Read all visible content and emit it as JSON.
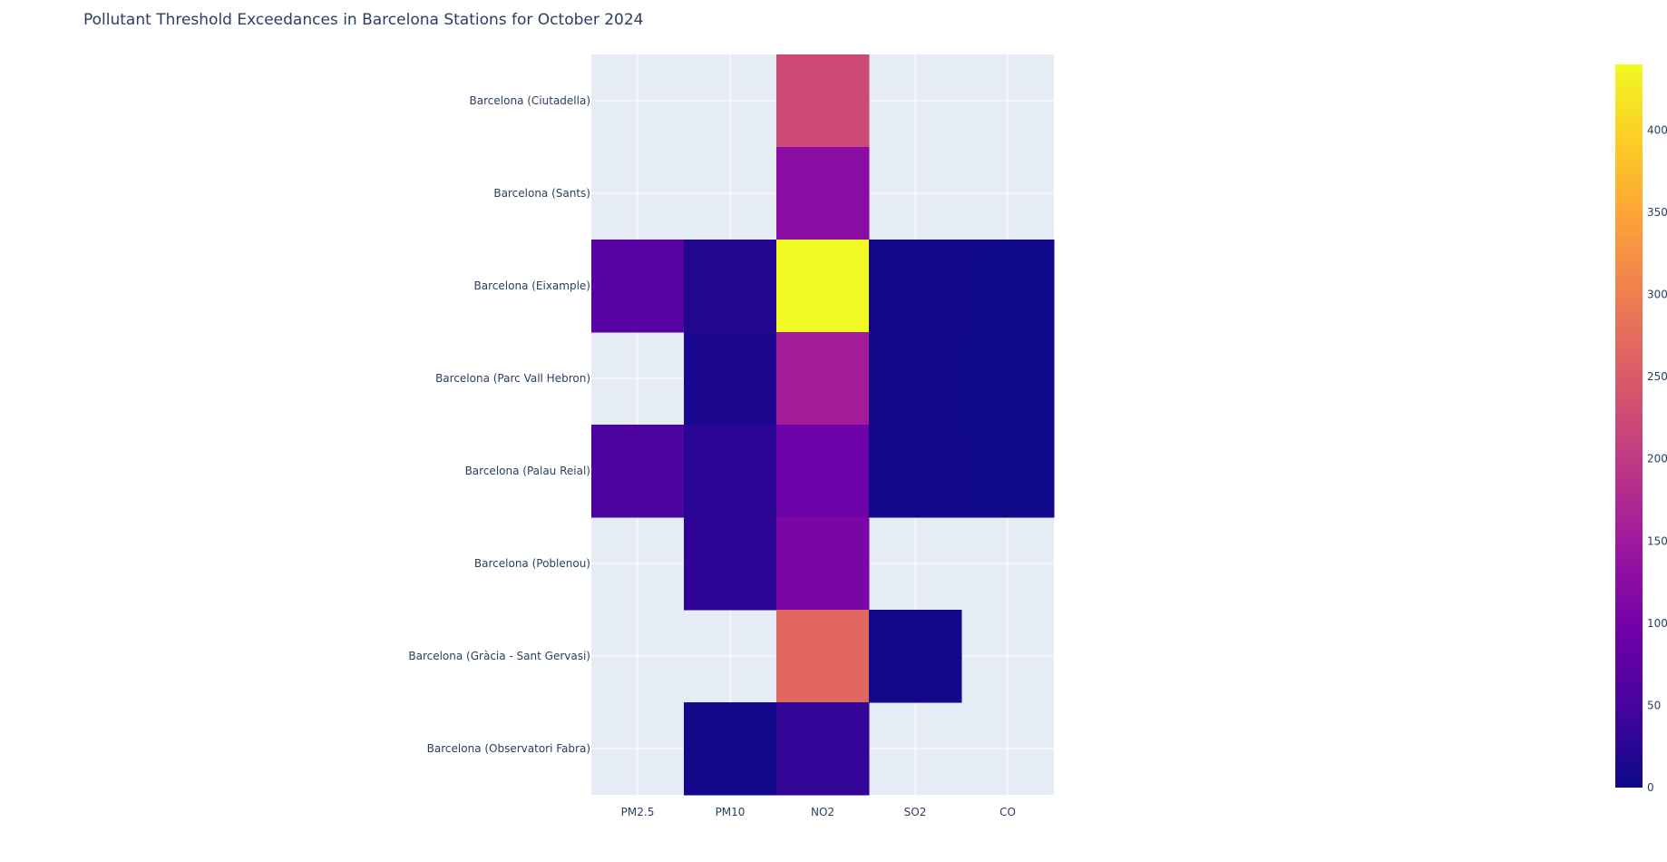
{
  "chart_data": {
    "type": "heatmap",
    "title": "Pollutant Threshold Exceedances in Barcelona Stations for October 2024",
    "xlabel": "",
    "ylabel": "",
    "x_categories": [
      "PM2.5",
      "PM10",
      "NO2",
      "SO2",
      "CO"
    ],
    "y_categories": [
      "Barcelona (Ciutadella)",
      "Barcelona (Sants)",
      "Barcelona (Eixample)",
      "Barcelona (Parc Vall Hebron)",
      "Barcelona (Palau Reial)",
      "Barcelona (Poblenou)",
      "Barcelona (Gràcia - Sant Gervasi)",
      "Barcelona (Observatori Fabra)"
    ],
    "z": [
      [
        null,
        null,
        225,
        null,
        null
      ],
      [
        null,
        null,
        124,
        null,
        null
      ],
      [
        70,
        18,
        440,
        4,
        2
      ],
      [
        null,
        12,
        155,
        3,
        2
      ],
      [
        55,
        25,
        90,
        4,
        2
      ],
      [
        null,
        28,
        108,
        null,
        null
      ],
      [
        null,
        null,
        265,
        6,
        null
      ],
      [
        null,
        4,
        32,
        null,
        null
      ]
    ],
    "colorscale": "Plasma",
    "zlim": [
      0,
      440
    ],
    "colorbar_ticks": [
      0,
      50,
      100,
      150,
      200,
      250,
      300,
      350,
      400
    ],
    "grid": true,
    "missing_color": "#e5ecf6",
    "grid_color": "#ffffff"
  }
}
